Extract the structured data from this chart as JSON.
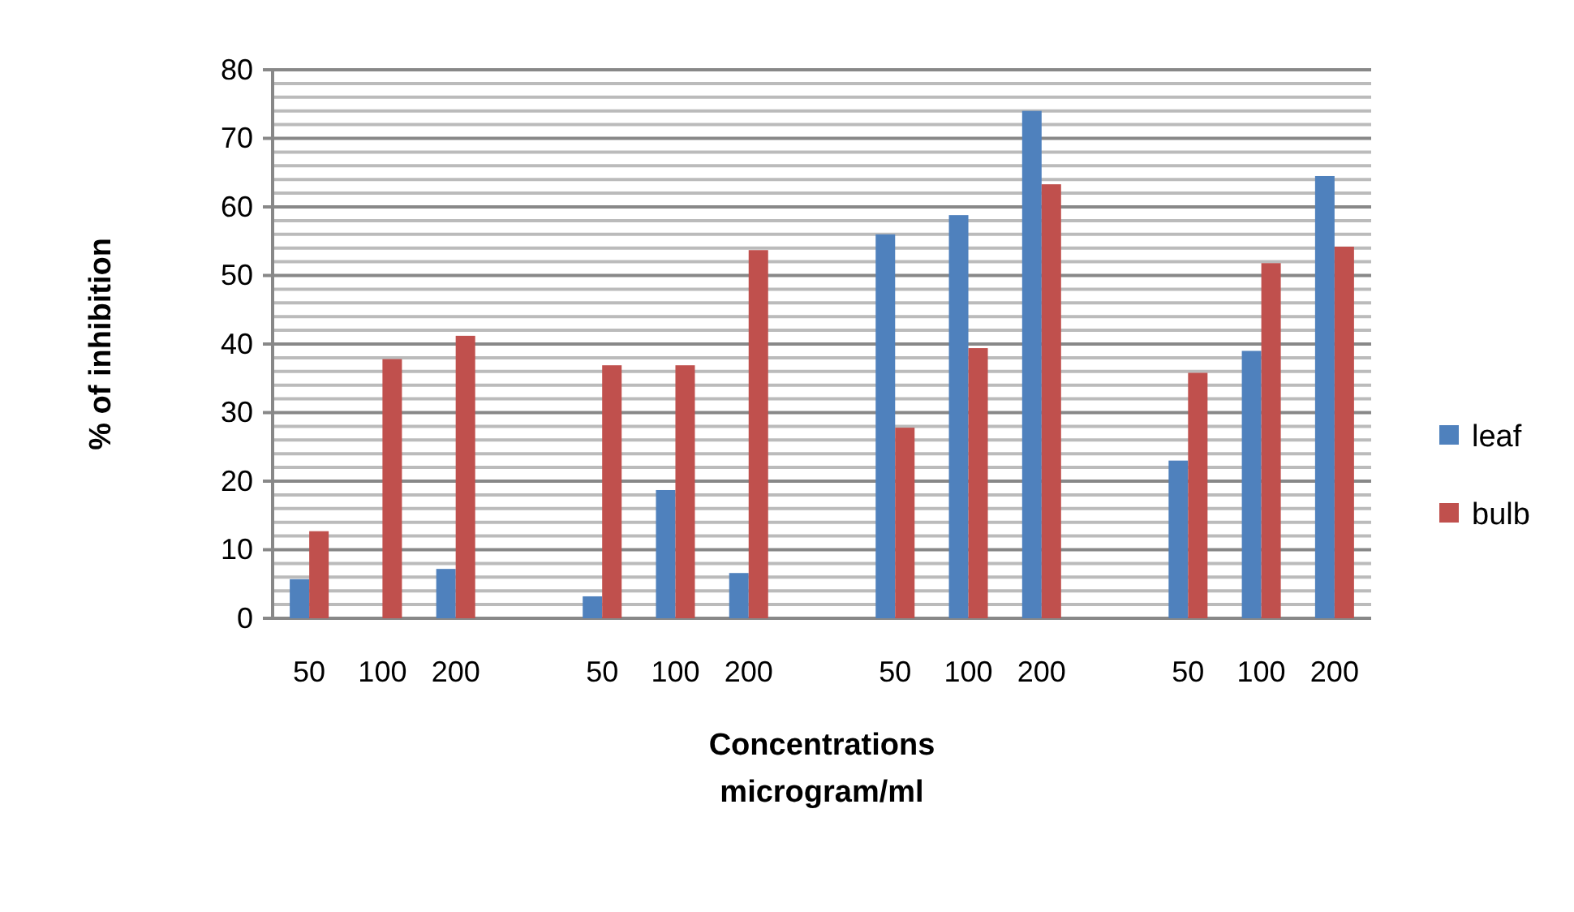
{
  "chart_data": {
    "type": "bar",
    "xlabel": "Concentrations\nmicrogram/ml",
    "ylabel": "% of inhibition",
    "categories": [
      "50",
      "100",
      "200",
      null,
      "50",
      "100",
      "200",
      null,
      "50",
      "100",
      "200",
      null,
      "50",
      "100",
      "200"
    ],
    "series": [
      {
        "name": "leaf",
        "color": "#4f81bd",
        "values": [
          5.7,
          null,
          7.2,
          null,
          3.2,
          18.7,
          6.6,
          null,
          56,
          58.8,
          74,
          null,
          23,
          39,
          64.5
        ]
      },
      {
        "name": "bulb",
        "color": "#c0504d",
        "values": [
          12.7,
          37.8,
          41.2,
          null,
          36.9,
          36.9,
          53.7,
          null,
          27.8,
          39.4,
          63.3,
          null,
          35.8,
          51.8,
          54.2
        ]
      }
    ],
    "ylim": [
      0,
      80
    ],
    "yticks": [
      0,
      {
        "value": 2,
        "label": null
      },
      {
        "value": 4,
        "label": null
      },
      {
        "value": 6,
        "label": null
      },
      {
        "value": 8,
        "label": null
      },
      10,
      {
        "value": 12,
        "label": null
      },
      {
        "value": 14,
        "label": null
      },
      {
        "value": 16,
        "label": null
      },
      {
        "value": 18,
        "label": null
      },
      20,
      {
        "value": 22,
        "label": null
      },
      {
        "value": 24,
        "label": null
      },
      {
        "value": 26,
        "label": null
      },
      {
        "value": 28,
        "label": null
      },
      30,
      {
        "value": 32,
        "label": null
      },
      {
        "value": 34,
        "label": null
      },
      {
        "value": 36,
        "label": null
      },
      {
        "value": 38,
        "label": null
      },
      40,
      {
        "value": 42,
        "label": null
      },
      {
        "value": 44,
        "label": null
      },
      {
        "value": 46,
        "label": null
      },
      {
        "value": 48,
        "label": null
      },
      50,
      {
        "value": 52,
        "label": null
      },
      {
        "value": 54,
        "label": null
      },
      {
        "value": 56,
        "label": null
      },
      {
        "value": 58,
        "label": null
      },
      60,
      {
        "value": 62,
        "label": null
      },
      {
        "value": 64,
        "label": null
      },
      {
        "value": 66,
        "label": null
      },
      {
        "value": 68,
        "label": null
      },
      70,
      {
        "value": 72,
        "label": null
      },
      {
        "value": 74,
        "label": null
      },
      {
        "value": 76,
        "label": null
      },
      {
        "value": 78,
        "label": null
      },
      80
    ],
    "grid": "y",
    "legend": "right"
  }
}
